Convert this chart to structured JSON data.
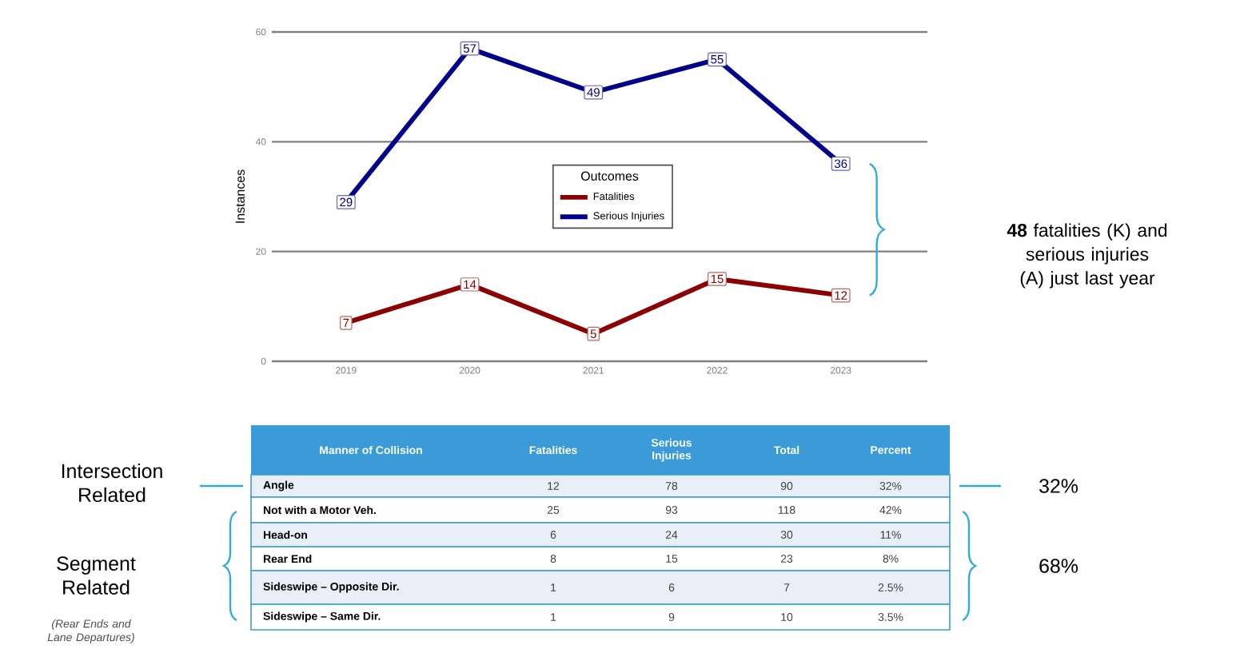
{
  "chart_data": [
    {
      "type": "line",
      "ylabel": "Instances",
      "legend_title": "Outcomes",
      "categories": [
        "2019",
        "2020",
        "2021",
        "2022",
        "2023"
      ],
      "series": [
        {
          "name": "Fatalities",
          "color": "#8b0000",
          "marker": "square",
          "values": [
            7,
            14,
            5,
            15,
            12
          ]
        },
        {
          "name": "Serious Injuries",
          "color": "#00008b",
          "marker": "square",
          "values": [
            29,
            57,
            49,
            55,
            36
          ]
        }
      ],
      "ylim": [
        0,
        60
      ],
      "yticks": [
        0,
        20,
        40,
        60
      ],
      "grid": "y",
      "legend": "center",
      "data_labels": true,
      "annotations": [
        "**48** fatalities (K) and serious injuries (A) just last year"
      ]
    },
    {
      "type": "other",
      "xlabel": "Manner of Collision",
      "categories": [
        "Angle",
        "Not with a Motor Veh.",
        "Head-on",
        "Rear End",
        "Sideswipe – Opposite Dir.",
        "Sideswipe – Same Dir."
      ],
      "series": [
        {
          "name": "Fatalities",
          "colors": [
            "#e8eff8",
            "#ffffff",
            "#e8eff8",
            "#ffffff",
            "#e8eff8",
            "#ffffff"
          ],
          "values": [
            12,
            25,
            6,
            8,
            1,
            1
          ]
        },
        {
          "name": "Serious Injuries",
          "values": [
            78,
            93,
            24,
            15,
            6,
            9
          ]
        },
        {
          "name": "Total",
          "values": [
            90,
            118,
            30,
            23,
            7,
            10
          ]
        },
        {
          "name": "Percent",
          "values": [
            32,
            42,
            11,
            8,
            2.5,
            3.5
          ],
          "value_labels": [
            "32%",
            "42%",
            "11%",
            "8%",
            "2.5%",
            "3.5%"
          ]
        }
      ],
      "data_labels": true,
      "annotations": [
        "Intersection Related",
        "Segment Related",
        "(Rear Ends and Lane Departures)",
        "32%",
        "68%"
      ]
    }
  ]
}
